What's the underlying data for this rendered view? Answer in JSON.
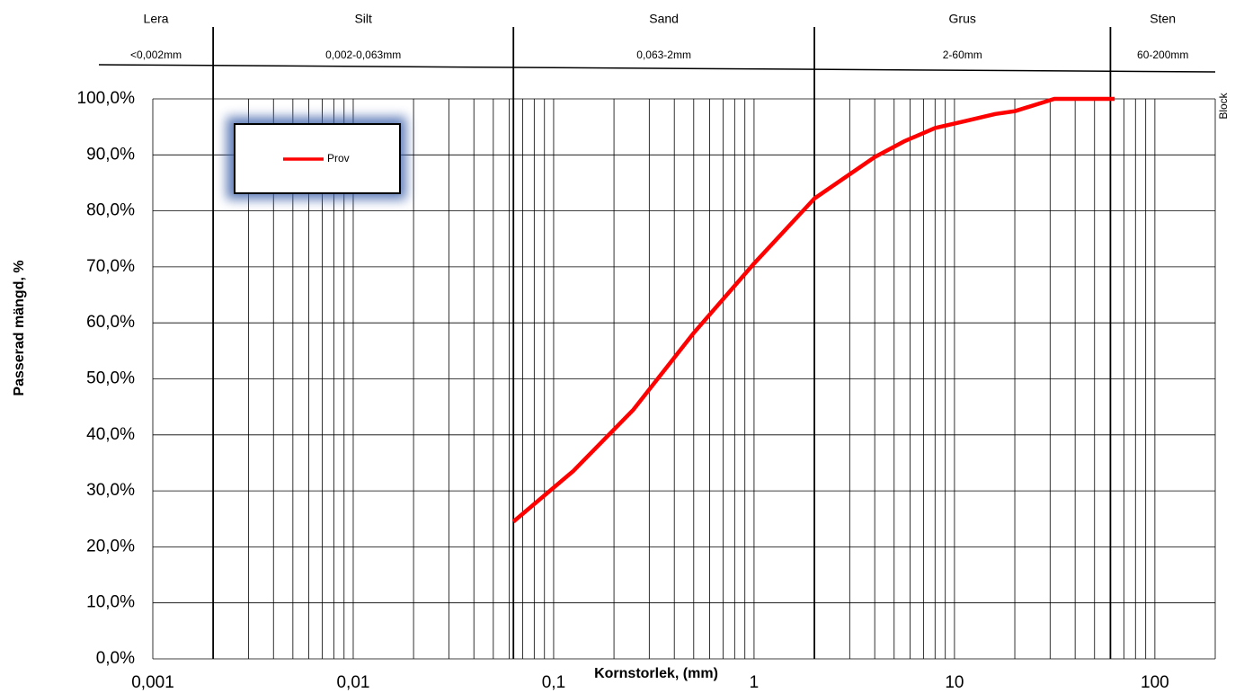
{
  "chart_data": {
    "type": "line",
    "xlabel": "Kornstorlek, (mm)",
    "ylabel": "Passerad mängd, %",
    "x_log_scale": true,
    "grid": true,
    "minor_grid": true,
    "xlim": [
      0.001,
      200
    ],
    "ylim": [
      0,
      100
    ],
    "xticks": [
      {
        "value": 0.001,
        "label": "0,001"
      },
      {
        "value": 0.01,
        "label": "0,01"
      },
      {
        "value": 0.1,
        "label": "0,1"
      },
      1,
      10,
      100
    ],
    "yticks": [
      {
        "value": 0,
        "label": "0,0%"
      },
      {
        "value": 10,
        "label": "10,0%"
      },
      {
        "value": 20,
        "label": "20,0%"
      },
      {
        "value": 30,
        "label": "30,0%"
      },
      {
        "value": 40,
        "label": "40,0%"
      },
      {
        "value": 50,
        "label": "50,0%"
      },
      {
        "value": 60,
        "label": "60,0%"
      },
      {
        "value": 70,
        "label": "70,0%"
      },
      {
        "value": 80,
        "label": "80,0%"
      },
      {
        "value": 90,
        "label": "90,0%"
      },
      {
        "value": 100,
        "label": "100,0%"
      }
    ],
    "zone_boundaries": [
      0.002,
      0.063,
      2,
      60
    ],
    "zones": [
      {
        "name": "Lera",
        "range": "<0,002mm"
      },
      {
        "name": "Silt",
        "range": "0,002-0,063mm"
      },
      {
        "name": "Sand",
        "range": "0,063-2mm"
      },
      {
        "name": "Grus",
        "range": "2-60mm"
      },
      {
        "name": "Sten",
        "range": "60-200mm"
      }
    ],
    "extra_zone": "Block",
    "legend_position": "upper left",
    "x": [
      0.063,
      0.125,
      0.25,
      0.5,
      1,
      2,
      4,
      5.6,
      8,
      11.2,
      16,
      20,
      31.5,
      45,
      63
    ],
    "series": [
      {
        "name": "Prov",
        "color": "#ff0000",
        "values": [
          24.5,
          33.5,
          44.5,
          58.2,
          70.6,
          82.2,
          89.6,
          92.4,
          94.8,
          96,
          97.3,
          97.8,
          100,
          100,
          100
        ]
      }
    ]
  }
}
